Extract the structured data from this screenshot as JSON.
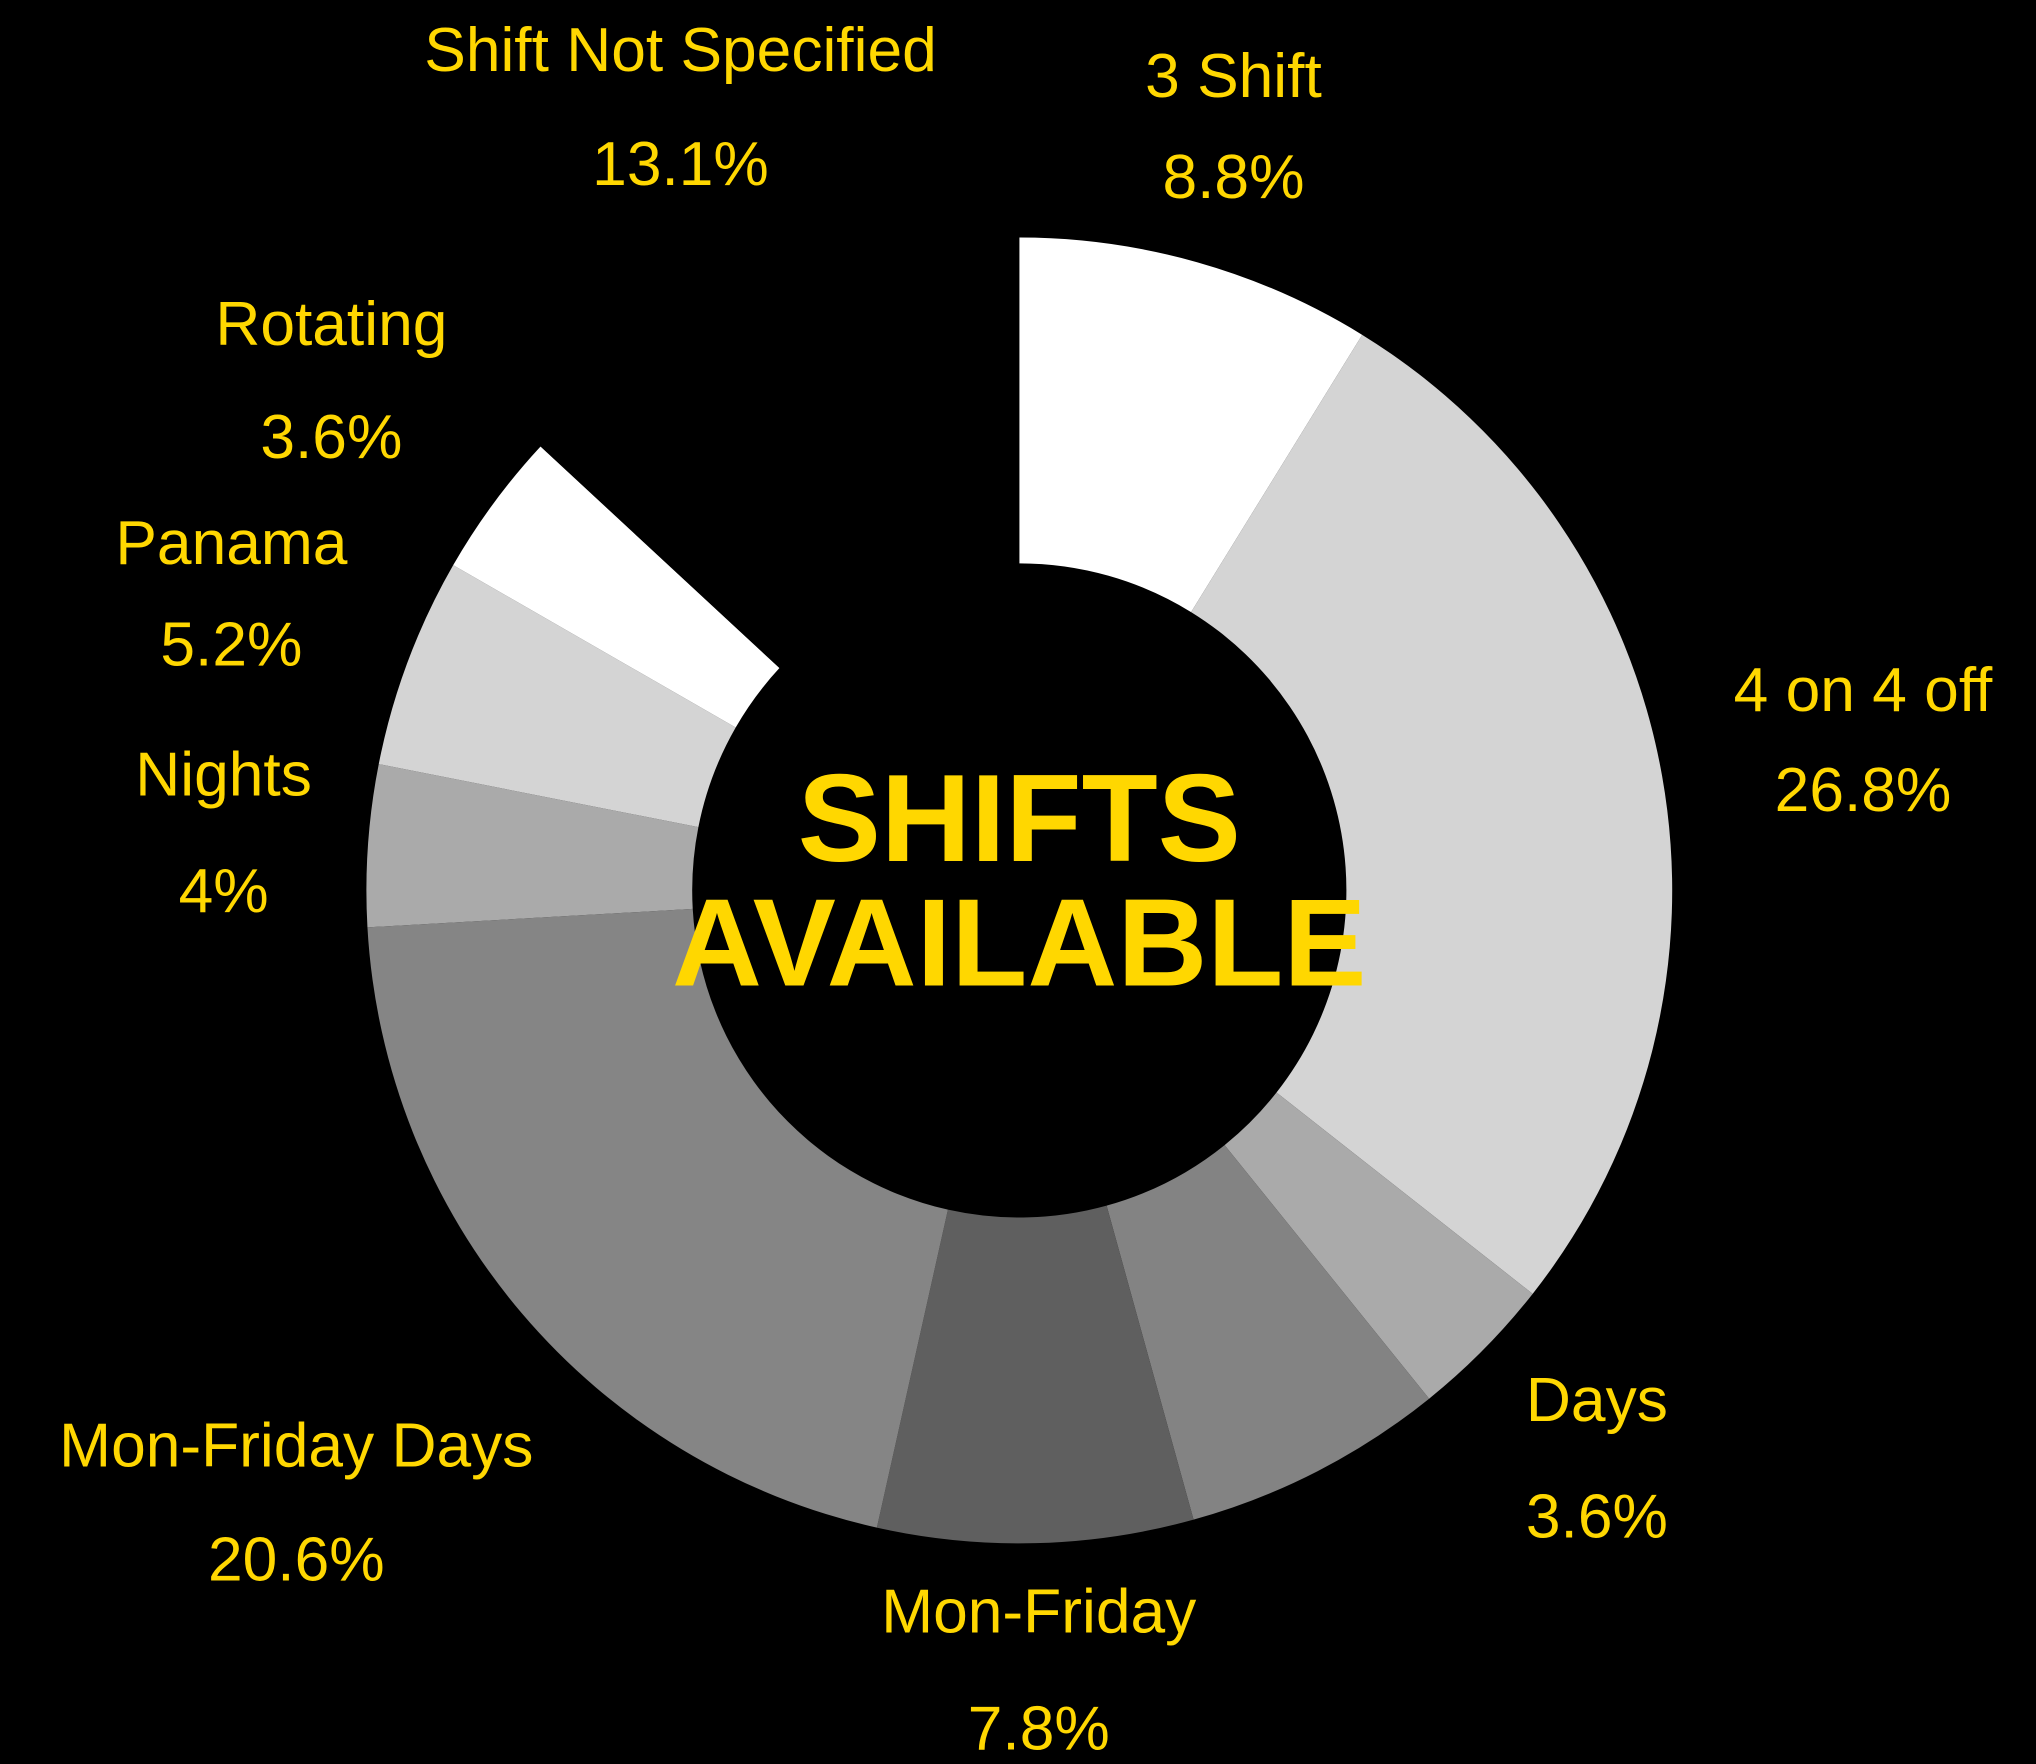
{
  "chart_data": {
    "type": "donut",
    "title": [
      "SHIFTS",
      "AVAILABLE"
    ],
    "categories": [
      "3 Shift",
      "4 on 4 off",
      "Days",
      null,
      "Mon-Friday",
      "Mon-Friday Days",
      "Nights",
      "Panama",
      "Rotating",
      "Shift Not Specified"
    ],
    "values": [
      8.8,
      26.8,
      3.6,
      6.5,
      7.8,
      20.6,
      4,
      5.2,
      3.6,
      13.1
    ],
    "value_labels": [
      "8.8%",
      "26.8%",
      "3.6%",
      null,
      "7.8%",
      "20.6%",
      "4%",
      "5.2%",
      "3.6%",
      "13.1%"
    ],
    "colors": [
      "#ffffff",
      "#d4d4d4",
      "#aaaaaa",
      "#838383",
      "#5f5f5f",
      "#858585",
      "#aaaaaa",
      "#d4d4d4",
      "#ffffff",
      "#000000"
    ],
    "label_color": "#ffd700",
    "background": "#000000"
  }
}
